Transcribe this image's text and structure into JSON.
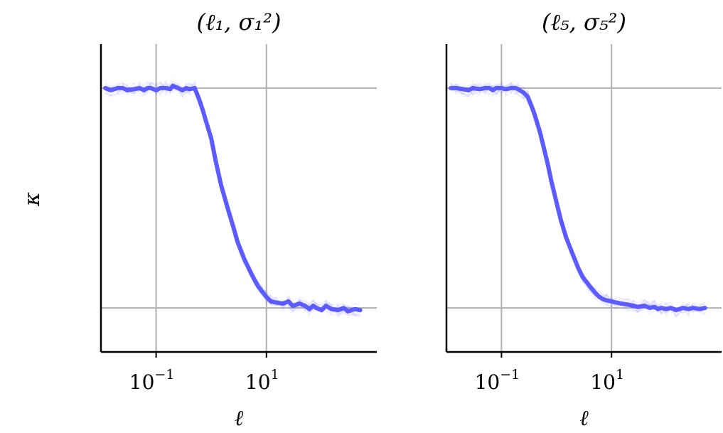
{
  "chart_data": {
    "type": "line",
    "panels": [
      {
        "title": "(ℓ₁, σ₁²)",
        "x_scale": "log",
        "xlim": [
          0.01,
          1000
        ],
        "ylim": [
          -0.2,
          1.2
        ],
        "xticks": [
          {
            "value": 0.1,
            "base": "10",
            "exp": "−1"
          },
          {
            "value": 10,
            "base": "10",
            "exp": "1"
          }
        ],
        "ygrid_values": [
          0,
          1
        ],
        "xlabel": "ℓ",
        "grid": true,
        "series": [
          {
            "color": "#5B5BFF",
            "x": [
              0.012,
              0.015,
              0.02,
              0.025,
              0.03,
              0.04,
              0.05,
              0.06,
              0.07,
              0.08,
              0.1,
              0.12,
              0.15,
              0.18,
              0.2,
              0.25,
              0.3,
              0.35,
              0.4,
              0.5,
              0.6,
              0.7,
              0.8,
              1.0,
              1.2,
              1.5,
              2,
              2.5,
              3,
              4,
              5,
              6,
              7,
              8,
              10,
              12,
              15,
              20,
              25,
              30,
              40,
              50,
              60,
              70,
              80,
              100,
              120,
              150,
              200,
              250,
              300,
              400,
              500
            ],
            "values": [
              1.0,
              0.99,
              1.0,
              1.0,
              0.99,
              0.995,
              1.0,
              0.99,
              1.0,
              1.0,
              0.99,
              1.0,
              1.0,
              0.995,
              1.01,
              1.0,
              0.99,
              1.0,
              0.995,
              1.0,
              0.95,
              0.9,
              0.85,
              0.77,
              0.67,
              0.56,
              0.45,
              0.37,
              0.3,
              0.22,
              0.17,
              0.13,
              0.1,
              0.08,
              0.05,
              0.03,
              0.025,
              0.02,
              0.03,
              0.01,
              0.02,
              0.01,
              -0.005,
              0.01,
              0.0,
              -0.01,
              0.01,
              -0.005,
              -0.01,
              0.0,
              -0.015,
              -0.005,
              -0.01
            ]
          }
        ]
      },
      {
        "title": "(ℓ₅, σ₅²)",
        "x_scale": "log",
        "xlim": [
          0.01,
          1000
        ],
        "ylim": [
          -0.2,
          1.2
        ],
        "xticks": [
          {
            "value": 0.1,
            "base": "10",
            "exp": "−1"
          },
          {
            "value": 10,
            "base": "10",
            "exp": "1"
          }
        ],
        "ygrid_values": [
          0,
          1
        ],
        "xlabel": "ℓ",
        "grid": true,
        "series": [
          {
            "color": "#5B5BFF",
            "x": [
              0.012,
              0.015,
              0.02,
              0.025,
              0.03,
              0.04,
              0.05,
              0.06,
              0.07,
              0.08,
              0.1,
              0.12,
              0.15,
              0.18,
              0.2,
              0.25,
              0.3,
              0.35,
              0.4,
              0.5,
              0.6,
              0.7,
              0.8,
              1.0,
              1.2,
              1.5,
              2,
              2.5,
              3,
              4,
              5,
              6,
              7,
              8,
              10,
              12,
              15,
              20,
              25,
              30,
              40,
              50,
              60,
              70,
              80,
              100,
              120,
              150,
              200,
              250,
              300,
              400,
              500
            ],
            "values": [
              1.0,
              1.0,
              0.995,
              0.99,
              1.0,
              0.995,
              1.0,
              1.0,
              0.99,
              1.0,
              1.0,
              0.995,
              1.0,
              1.0,
              0.995,
              0.98,
              0.96,
              0.92,
              0.88,
              0.8,
              0.72,
              0.65,
              0.58,
              0.48,
              0.4,
              0.32,
              0.24,
              0.18,
              0.14,
              0.1,
              0.07,
              0.05,
              0.04,
              0.035,
              0.03,
              0.025,
              0.02,
              0.015,
              0.01,
              0.005,
              0.01,
              0.0,
              0.005,
              -0.005,
              0.0,
              -0.005,
              0.0,
              -0.01,
              0.0,
              -0.005,
              0.0,
              -0.005,
              0.0
            ]
          }
        ]
      }
    ],
    "ylabel": "κ"
  }
}
